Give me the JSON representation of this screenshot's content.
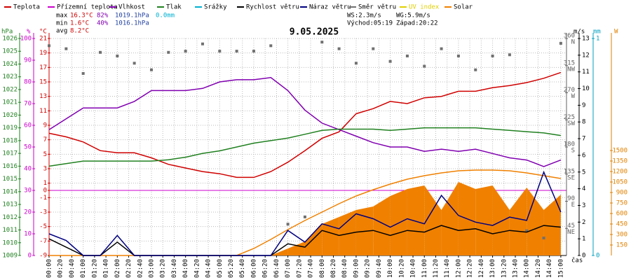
{
  "chart_data": {
    "type": "line",
    "title": "9.05.2025",
    "x_label": "čas",
    "stats": [
      {
        "label": "max",
        "temp": "16.3°C",
        "hum": "82%",
        "press": "1019.1hPa",
        "rain": "0.0mm"
      },
      {
        "label": "min",
        "temp": "1.6°C",
        "hum": "40%",
        "press": "1016.1hPa"
      },
      {
        "label": "avg",
        "temp": "8.2°C"
      }
    ],
    "wind_info": [
      "WS:2.3m/s",
      "WG:5.9m/s",
      "Východ:05:19",
      "Západ:20:22"
    ],
    "x": [
      0,
      30,
      60,
      90,
      120,
      150,
      180,
      210,
      240,
      270,
      300,
      330,
      360,
      390,
      420,
      450,
      480,
      510,
      540,
      570,
      600,
      630,
      660,
      690,
      720,
      750,
      780,
      810,
      840,
      870,
      900
    ],
    "xlim": [
      0,
      910
    ],
    "xticks": [
      {
        "value": 0,
        "label": "00:00"
      },
      {
        "value": 20,
        "label": "00:20"
      },
      {
        "value": 40,
        "label": "00:40"
      },
      {
        "value": 60,
        "label": "01:00"
      },
      {
        "value": 80,
        "label": "01:20"
      },
      {
        "value": 100,
        "label": "01:40"
      },
      {
        "value": 120,
        "label": "02:00"
      },
      {
        "value": 140,
        "label": "02:20"
      },
      {
        "value": 160,
        "label": "02:40"
      },
      {
        "value": 180,
        "label": "03:00"
      },
      {
        "value": 200,
        "label": "03:20"
      },
      {
        "value": 220,
        "label": "03:40"
      },
      {
        "value": 240,
        "label": "04:00"
      },
      {
        "value": 260,
        "label": "04:20"
      },
      {
        "value": 280,
        "label": "04:40"
      },
      {
        "value": 300,
        "label": "05:00"
      },
      {
        "value": 320,
        "label": "05:20"
      },
      {
        "value": 340,
        "label": "05:40"
      },
      {
        "value": 360,
        "label": "06:00"
      },
      {
        "value": 380,
        "label": "06:20"
      },
      {
        "value": 400,
        "label": "06:40"
      },
      {
        "value": 420,
        "label": "07:00"
      },
      {
        "value": 440,
        "label": "07:20"
      },
      {
        "value": 460,
        "label": "07:40"
      },
      {
        "value": 480,
        "label": "08:00"
      },
      {
        "value": 500,
        "label": "08:20"
      },
      {
        "value": 520,
        "label": "08:40"
      },
      {
        "value": 540,
        "label": "09:00"
      },
      {
        "value": 560,
        "label": "09:20"
      },
      {
        "value": 580,
        "label": "09:40"
      },
      {
        "value": 600,
        "label": "10:00"
      },
      {
        "value": 620,
        "label": "10:20"
      },
      {
        "value": 640,
        "label": "10:40"
      },
      {
        "value": 660,
        "label": "11:00"
      },
      {
        "value": 680,
        "label": "11:20"
      },
      {
        "value": 700,
        "label": "11:40"
      },
      {
        "value": 720,
        "label": "12:00"
      },
      {
        "value": 740,
        "label": "12:20"
      },
      {
        "value": 760,
        "label": "12:40"
      },
      {
        "value": 780,
        "label": "13:00"
      },
      {
        "value": 800,
        "label": "13:20"
      },
      {
        "value": 820,
        "label": "13:40"
      },
      {
        "value": 840,
        "label": "14:00"
      },
      {
        "value": 860,
        "label": "14:20"
      },
      {
        "value": 880,
        "label": "14:40"
      },
      {
        "value": 900,
        "label": "15:00"
      }
    ],
    "grid": true,
    "axes": {
      "hpa": {
        "label": "hPa",
        "color": "#208020",
        "ylim": [
          1009,
          1026
        ],
        "yticks": [
          1009,
          1010,
          1011,
          1012,
          1013,
          1014,
          1015,
          1016,
          1017,
          1018,
          1019,
          1020,
          1021,
          1022,
          1023,
          1024,
          1025,
          1026
        ]
      },
      "pct": {
        "label": "%",
        "color": "#cc00cc",
        "ylim": [
          0,
          100
        ],
        "yticks": [
          0,
          10,
          20,
          30,
          40,
          50,
          60,
          70,
          80,
          90,
          100
        ]
      },
      "temp": {
        "label": "°C",
        "color": "#d00000",
        "ylim": [
          -9,
          21
        ],
        "yticks": [
          -9,
          -7,
          -5,
          -3,
          -1,
          0,
          1,
          3,
          5,
          7,
          9,
          11,
          13,
          15,
          17,
          19,
          21
        ]
      },
      "ms": {
        "label": "m/s",
        "color": "#000000",
        "ylim": [
          0,
          13
        ],
        "yticks": [
          0,
          1,
          2,
          3,
          4,
          5,
          6,
          7,
          8,
          9,
          10,
          11,
          12,
          13
        ]
      },
      "dir": {
        "color": "#606060",
        "ylim": [
          0,
          360
        ],
        "yticks": [
          45,
          90,
          135,
          180,
          225,
          270,
          315,
          360
        ],
        "dir_labels": [
          "NE",
          "E",
          "SE",
          "S",
          "SW",
          "W",
          "NW",
          "N"
        ]
      },
      "mm": {
        "label": "mm",
        "color": "#00a0c0",
        "ylim": [
          0,
          1
        ],
        "yticks": [
          0,
          1
        ]
      },
      "w": {
        "label": "W",
        "color": "#e08000",
        "ylim": [
          0,
          3100
        ],
        "yticks": [
          150,
          300,
          450,
          600,
          750,
          900,
          1050,
          1200,
          1350,
          1500
        ]
      }
    },
    "zero_line": {
      "axis": "temp",
      "value": 0,
      "color": "#cc00cc"
    },
    "series": [
      {
        "name": "Teplota",
        "color": "#d00000",
        "type": "line",
        "axis": "temp",
        "values": [
          7.9,
          7.4,
          6.7,
          5.5,
          5.2,
          5.2,
          4.5,
          3.6,
          3.1,
          2.6,
          2.3,
          1.8,
          1.8,
          2.6,
          3.9,
          5.5,
          7.2,
          8.1,
          10.6,
          11.3,
          12.3,
          12,
          12.8,
          13,
          13.7,
          13.7,
          14.2,
          14.5,
          14.9,
          15.5,
          16.3
        ]
      },
      {
        "name": "Přízemní teplota",
        "color": "#cc00cc"
      },
      {
        "name": "Vlhkost",
        "color": "#8000b0",
        "type": "line",
        "axis": "pct",
        "values": [
          58,
          63,
          68,
          68,
          68,
          71,
          76,
          76,
          76,
          77,
          80,
          81,
          81,
          82,
          76,
          67,
          61,
          58,
          55,
          52,
          50,
          50,
          48,
          49,
          48,
          49,
          47,
          45,
          44,
          41,
          44
        ]
      },
      {
        "name": "Tlak",
        "color": "#208020",
        "type": "line",
        "axis": "hpa",
        "values": [
          1016.0,
          1016.2,
          1016.4,
          1016.4,
          1016.4,
          1016.4,
          1016.4,
          1016.5,
          1016.7,
          1017.0,
          1017.2,
          1017.5,
          1017.8,
          1018.0,
          1018.2,
          1018.5,
          1018.8,
          1018.9,
          1018.9,
          1018.9,
          1018.8,
          1018.9,
          1019.0,
          1019.0,
          1019.0,
          1019.0,
          1018.9,
          1018.8,
          1018.7,
          1018.6,
          1018.4
        ]
      },
      {
        "name": "Srážky",
        "color": "#00b0d0"
      },
      {
        "name": "Rychlost větru",
        "color": "#000000",
        "type": "line",
        "axis": "ms",
        "values": [
          1,
          0.5,
          0,
          0,
          0.8,
          0,
          0,
          0,
          0,
          0,
          0,
          0,
          0,
          0,
          0.7,
          0.5,
          1.5,
          1.2,
          1.4,
          1.5,
          1.2,
          1.5,
          1.4,
          1.8,
          1.5,
          1.6,
          1.3,
          1.5,
          1.4,
          1.8,
          1.7
        ]
      },
      {
        "name": "Náraz větru",
        "color": "#000080",
        "type": "line",
        "axis": "ms",
        "values": [
          1.3,
          0.9,
          0,
          0,
          1.2,
          0,
          0,
          0,
          0,
          0,
          0,
          0,
          0,
          0,
          1.5,
          0.8,
          1.9,
          1.6,
          2.5,
          2.2,
          1.7,
          2.2,
          1.9,
          3.6,
          2.4,
          2.0,
          1.8,
          2.3,
          2.1,
          5.0,
          2.6
        ]
      },
      {
        "name": "Směr větru",
        "color": "#707070",
        "type": "scatter",
        "axis": "dir",
        "values": [
          348,
          343,
          302,
          337,
          331,
          319,
          308,
          337,
          339,
          351,
          339,
          339,
          339,
          348,
          52,
          64,
          354,
          343,
          319,
          343,
          322,
          331,
          314,
          343,
          331,
          308,
          331,
          333,
          41,
          29,
          352
        ]
      },
      {
        "name": "UV index",
        "color": "#e0d000"
      },
      {
        "name": "Solar",
        "color": "#f08000",
        "type": "area",
        "axis": "w",
        "values": [
          0,
          0,
          0,
          0,
          0,
          0,
          0,
          0,
          0,
          0,
          0,
          0,
          0,
          0,
          100,
          200,
          450,
          550,
          650,
          700,
          850,
          950,
          1000,
          650,
          1050,
          950,
          1000,
          650,
          970,
          650,
          870
        ],
        "max_values": [
          0,
          0,
          0,
          0,
          0,
          0,
          0,
          0,
          0,
          0,
          0,
          0,
          100,
          230,
          370,
          500,
          620,
          740,
          850,
          940,
          1020,
          1090,
          1140,
          1180,
          1210,
          1220,
          1220,
          1210,
          1180,
          1140,
          1100
        ]
      }
    ]
  }
}
